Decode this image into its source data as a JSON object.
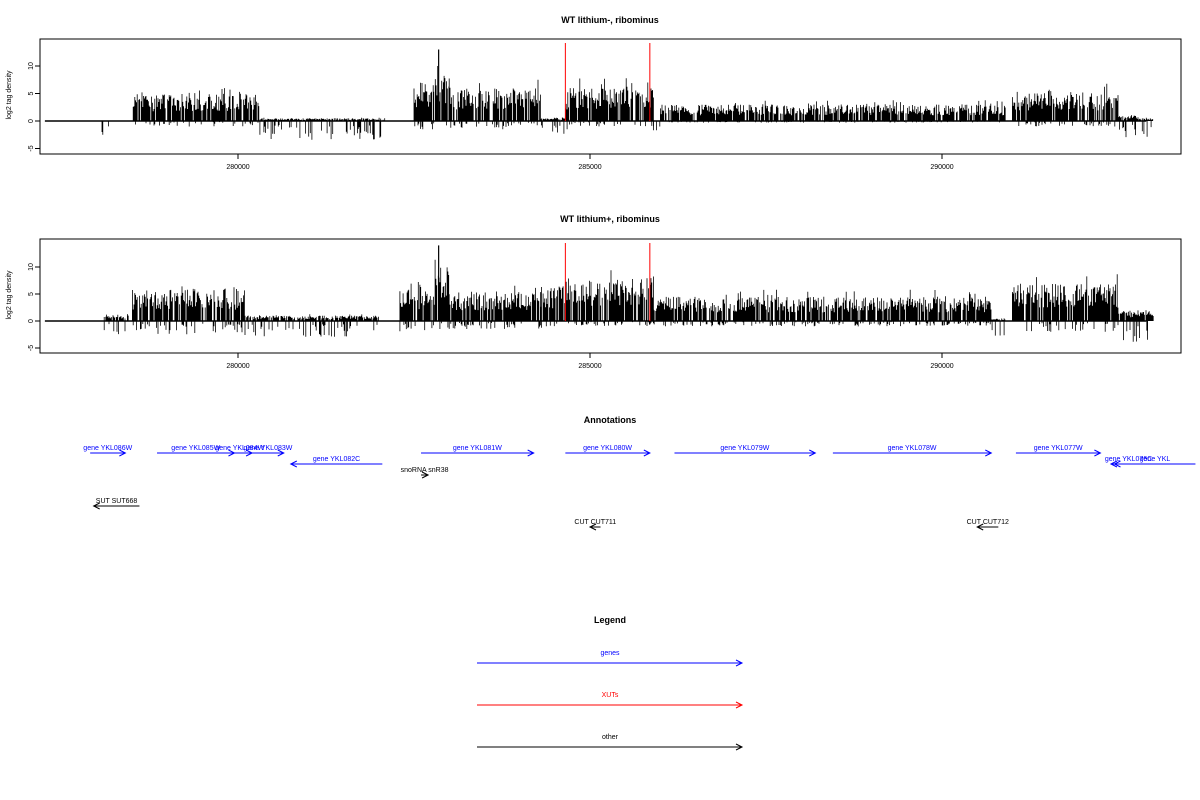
{
  "colors": {
    "genes": "#0000ff",
    "XUTs": "#ff0000",
    "other": "#000000",
    "marker": "#ff0000"
  },
  "chart_data": [
    {
      "type": "bar",
      "title": "WT lithium-, ribominus",
      "ylabel": "log2 tag density",
      "xlim": [
        277200,
        293400
      ],
      "ylim": [
        -5,
        15
      ],
      "xticks": [
        280000,
        285000,
        290000
      ],
      "yticks": [
        -5,
        0,
        5,
        10
      ],
      "markers": [
        284650,
        285850
      ],
      "regions": [
        {
          "start": 278000,
          "end": 278300,
          "pos": 0,
          "neg": 3
        },
        {
          "start": 278500,
          "end": 280300,
          "pos": 5,
          "neg": 1
        },
        {
          "start": 280300,
          "end": 282100,
          "pos": 0.5,
          "neg": 3.5
        },
        {
          "start": 282500,
          "end": 282780,
          "pos": 6,
          "neg": 1.5
        },
        {
          "start": 282780,
          "end": 283000,
          "pos": 9,
          "neg": 1
        },
        {
          "start": 283000,
          "end": 284300,
          "pos": 6,
          "neg": 1.5
        },
        {
          "start": 284300,
          "end": 284700,
          "pos": 0.5,
          "neg": 3
        },
        {
          "start": 284650,
          "end": 285900,
          "pos": 6,
          "neg": 1
        },
        {
          "start": 285900,
          "end": 286000,
          "pos": 0,
          "neg": 2
        },
        {
          "start": 286000,
          "end": 290900,
          "pos": 3,
          "neg": 0.3
        },
        {
          "start": 291000,
          "end": 292500,
          "pos": 5.5,
          "neg": 1
        },
        {
          "start": 292500,
          "end": 292800,
          "pos": 1,
          "neg": 3
        },
        {
          "start": 292800,
          "end": 293000,
          "pos": 0.5,
          "neg": 3
        }
      ],
      "peaks": [
        {
          "x": 282850,
          "value": 13
        }
      ]
    },
    {
      "type": "bar",
      "title": "WT lithium+, ribominus",
      "ylabel": "log2 tag density",
      "xlim": [
        277200,
        293400
      ],
      "ylim": [
        -5,
        15
      ],
      "xticks": [
        280000,
        285000,
        290000
      ],
      "yticks": [
        -5,
        0,
        5,
        10
      ],
      "markers": [
        284650,
        285850
      ],
      "regions": [
        {
          "start": 278100,
          "end": 278450,
          "pos": 1,
          "neg": 2.5
        },
        {
          "start": 278500,
          "end": 280100,
          "pos": 6,
          "neg": 2.5
        },
        {
          "start": 280100,
          "end": 282000,
          "pos": 1,
          "neg": 3
        },
        {
          "start": 282300,
          "end": 282800,
          "pos": 6,
          "neg": 2
        },
        {
          "start": 282800,
          "end": 283000,
          "pos": 10,
          "neg": 1.5
        },
        {
          "start": 283000,
          "end": 284300,
          "pos": 5.5,
          "neg": 1.5
        },
        {
          "start": 284300,
          "end": 284650,
          "pos": 6.5,
          "neg": 1.5
        },
        {
          "start": 284650,
          "end": 285900,
          "pos": 8,
          "neg": 1
        },
        {
          "start": 285900,
          "end": 290700,
          "pos": 4.5,
          "neg": 1
        },
        {
          "start": 290700,
          "end": 290900,
          "pos": 0.5,
          "neg": 3
        },
        {
          "start": 291000,
          "end": 292500,
          "pos": 7,
          "neg": 2
        },
        {
          "start": 292500,
          "end": 293000,
          "pos": 2,
          "neg": 4
        }
      ],
      "peaks": [
        {
          "x": 282850,
          "value": 14
        }
      ]
    }
  ],
  "annotations": {
    "title": "Annotations",
    "features": [
      {
        "label": "gene YKL086W",
        "start": 277900,
        "end": 278400,
        "row": 0,
        "strand": "+",
        "kind": "genes"
      },
      {
        "label": "gene YKL085W",
        "start": 278850,
        "end": 279950,
        "row": 0,
        "strand": "+",
        "kind": "genes"
      },
      {
        "label": "gene YKL084W",
        "start": 279850,
        "end": 280200,
        "row": 0,
        "strand": "+",
        "kind": "genes"
      },
      {
        "label": "gene YKL083W",
        "start": 280200,
        "end": 280650,
        "row": 0,
        "strand": "+",
        "kind": "genes"
      },
      {
        "label": "gene YKL082C",
        "start": 280750,
        "end": 282050,
        "row": 1,
        "strand": "-",
        "kind": "genes"
      },
      {
        "label": "gene YKL081W",
        "start": 282600,
        "end": 284200,
        "row": 0,
        "strand": "+",
        "kind": "genes"
      },
      {
        "label": "snoRNA snR38",
        "start": 282600,
        "end": 282700,
        "row": 2,
        "strand": "+",
        "kind": "other"
      },
      {
        "label": "gene YKL080W",
        "start": 284650,
        "end": 285850,
        "row": 0,
        "strand": "+",
        "kind": "genes"
      },
      {
        "label": "gene YKL079W",
        "start": 286200,
        "end": 288200,
        "row": 0,
        "strand": "+",
        "kind": "genes"
      },
      {
        "label": "gene YKL078W",
        "start": 288450,
        "end": 290700,
        "row": 0,
        "strand": "+",
        "kind": "genes"
      },
      {
        "label": "gene YKL077W",
        "start": 291050,
        "end": 292250,
        "row": 0,
        "strand": "+",
        "kind": "genes"
      },
      {
        "label": "gene YKL076C",
        "start": 292400,
        "end": 292900,
        "row": 1,
        "strand": "-",
        "kind": "genes"
      },
      {
        "label": "gene YKL",
        "start": 292450,
        "end": 293600,
        "row": 1,
        "strand": "-",
        "kind": "genes"
      },
      {
        "label": "SUT SUT668",
        "start": 277950,
        "end": 278600,
        "row": 3,
        "strand": "-",
        "kind": "other"
      },
      {
        "label": "CUT CUT711",
        "start": 285000,
        "end": 285150,
        "row": 4,
        "strand": "-",
        "kind": "other"
      },
      {
        "label": "CUT CUT712",
        "start": 290500,
        "end": 290800,
        "row": 4,
        "strand": "-",
        "kind": "other"
      }
    ]
  },
  "legend": {
    "title": "Legend",
    "entries": [
      {
        "label": "genes",
        "color_key": "genes"
      },
      {
        "label": "XUTs",
        "color_key": "XUTs"
      },
      {
        "label": "other",
        "color_key": "other"
      }
    ]
  }
}
